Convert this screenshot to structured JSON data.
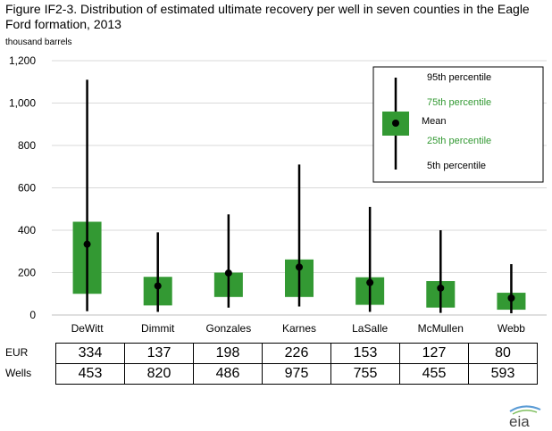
{
  "title": "Figure IF2-3. Distribution of estimated ultimate recovery per well in seven counties in the Eagle Ford formation, 2013",
  "chart_data": {
    "type": "box",
    "ylabel": "thousand barrels",
    "ylim": [
      0,
      1200
    ],
    "yticks": [
      "0",
      "200",
      "400",
      "600",
      "800",
      "1,000",
      "1,200"
    ],
    "grid": true,
    "legend_position": "top-right",
    "colors": {
      "box": "#339933",
      "whisker": "#000000",
      "grid": "#d9d9d9",
      "legend_green_text": "#339933"
    },
    "categories": [
      "DeWitt",
      "Dimmit",
      "Gonzales",
      "Karnes",
      "LaSalle",
      "McMullen",
      "Webb"
    ],
    "series": [
      {
        "name": "95th percentile",
        "values": [
          1110,
          390,
          475,
          710,
          510,
          400,
          240
        ]
      },
      {
        "name": "75th percentile",
        "values": [
          440,
          180,
          200,
          262,
          178,
          160,
          105
        ]
      },
      {
        "name": "Mean",
        "values": [
          334,
          137,
          198,
          226,
          153,
          127,
          80
        ]
      },
      {
        "name": "25th percentile",
        "values": [
          100,
          45,
          85,
          85,
          48,
          35,
          25
        ]
      },
      {
        "name": "5th percentile",
        "values": [
          18,
          15,
          35,
          40,
          15,
          10,
          8
        ]
      }
    ],
    "table": {
      "rows": [
        {
          "label": "EUR",
          "values": [
            "334",
            "137",
            "198",
            "226",
            "153",
            "127",
            "80"
          ]
        },
        {
          "label": "Wells",
          "values": [
            "453",
            "820",
            "486",
            "975",
            "755",
            "455",
            "593"
          ]
        }
      ]
    }
  },
  "legend": {
    "p95": "95th percentile",
    "p75": "75th percentile",
    "mean": "Mean",
    "p25": "25th percentile",
    "p5": "5th percentile"
  },
  "logo_text": "eia"
}
